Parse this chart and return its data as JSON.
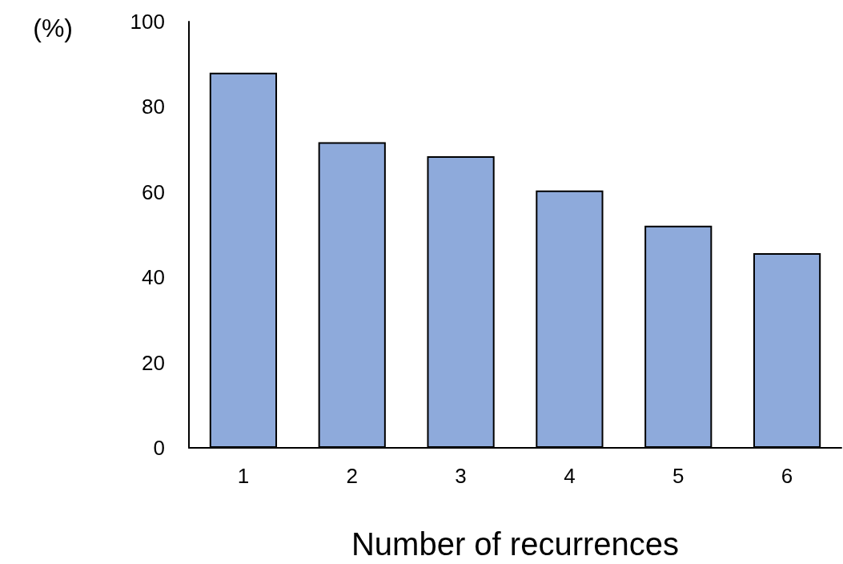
{
  "chart_data": {
    "type": "bar",
    "xlabel": "Number of recurrences",
    "ylabel": "(%)",
    "categories": [
      "1",
      "2",
      "3",
      "4",
      "5",
      "6"
    ],
    "values": [
      88,
      71.7,
      68.4,
      60.4,
      52.1,
      45.7
    ],
    "color": "#8eaadb",
    "ylim": [
      0,
      100
    ],
    "yticks": [
      0,
      20,
      40,
      60,
      80,
      100
    ],
    "grid": false
  }
}
